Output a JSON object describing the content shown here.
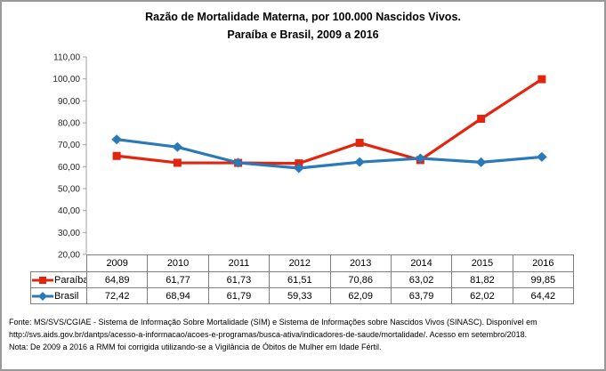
{
  "chart_data": {
    "type": "line",
    "title_line1": "Razão de Mortalidade Materna, por 100.000 Nascidos Vivos.",
    "title_line2": "Paraíba e Brasil, 2009 a 2016",
    "categories": [
      "2009",
      "2010",
      "2011",
      "2012",
      "2013",
      "2014",
      "2015",
      "2016"
    ],
    "series": [
      {
        "name": "Paraíba",
        "marker": "square",
        "color": "#E2250E",
        "values": [
          64.89,
          61.77,
          61.73,
          61.51,
          70.86,
          63.02,
          81.82,
          99.85
        ],
        "labels": [
          "64,89",
          "61,77",
          "61,73",
          "61,51",
          "70,86",
          "63,02",
          "81,82",
          "99,85"
        ]
      },
      {
        "name": "Brasil",
        "marker": "diamond",
        "color": "#2A79B9",
        "values": [
          72.42,
          68.94,
          61.79,
          59.33,
          62.09,
          63.79,
          62.02,
          64.42
        ],
        "labels": [
          "72,42",
          "68,94",
          "61,79",
          "59,33",
          "62,09",
          "63,79",
          "62,02",
          "64,42"
        ]
      }
    ],
    "ylim": [
      20,
      110
    ],
    "ytick_step": 10,
    "ytick_labels": [
      "110,00",
      "100,00",
      "90,00",
      "80,00",
      "70,00",
      "60,00",
      "50,00",
      "40,00",
      "30,00",
      "20,00"
    ],
    "grid": false,
    "legend_position": "data-table-left",
    "xlabel": "",
    "ylabel": ""
  },
  "colors": {
    "axis": "#A0A0A0",
    "table_border": "#7f7f7f",
    "text": "#000000"
  },
  "footer": {
    "lines": [
      "Fonte: MS/SVS/CGIAE - Sistema de Informação Sobre Mortalidade (SIM) e Sistema de Informações sobre Nascidos Vivos (SINASC). Disponível em",
      "http://svs.aids.gov.br/dantps/acesso-a-informacao/acoes-e-programas/busca-ativa/indicadores-de-saude/mortalidade/. Acesso em setembro/2018.",
      "Nota: De 2009 a 2016 a RMM foi corrigida utilizando-se a Vigilância de Óbitos de Mulher em Idade Fértil."
    ]
  }
}
